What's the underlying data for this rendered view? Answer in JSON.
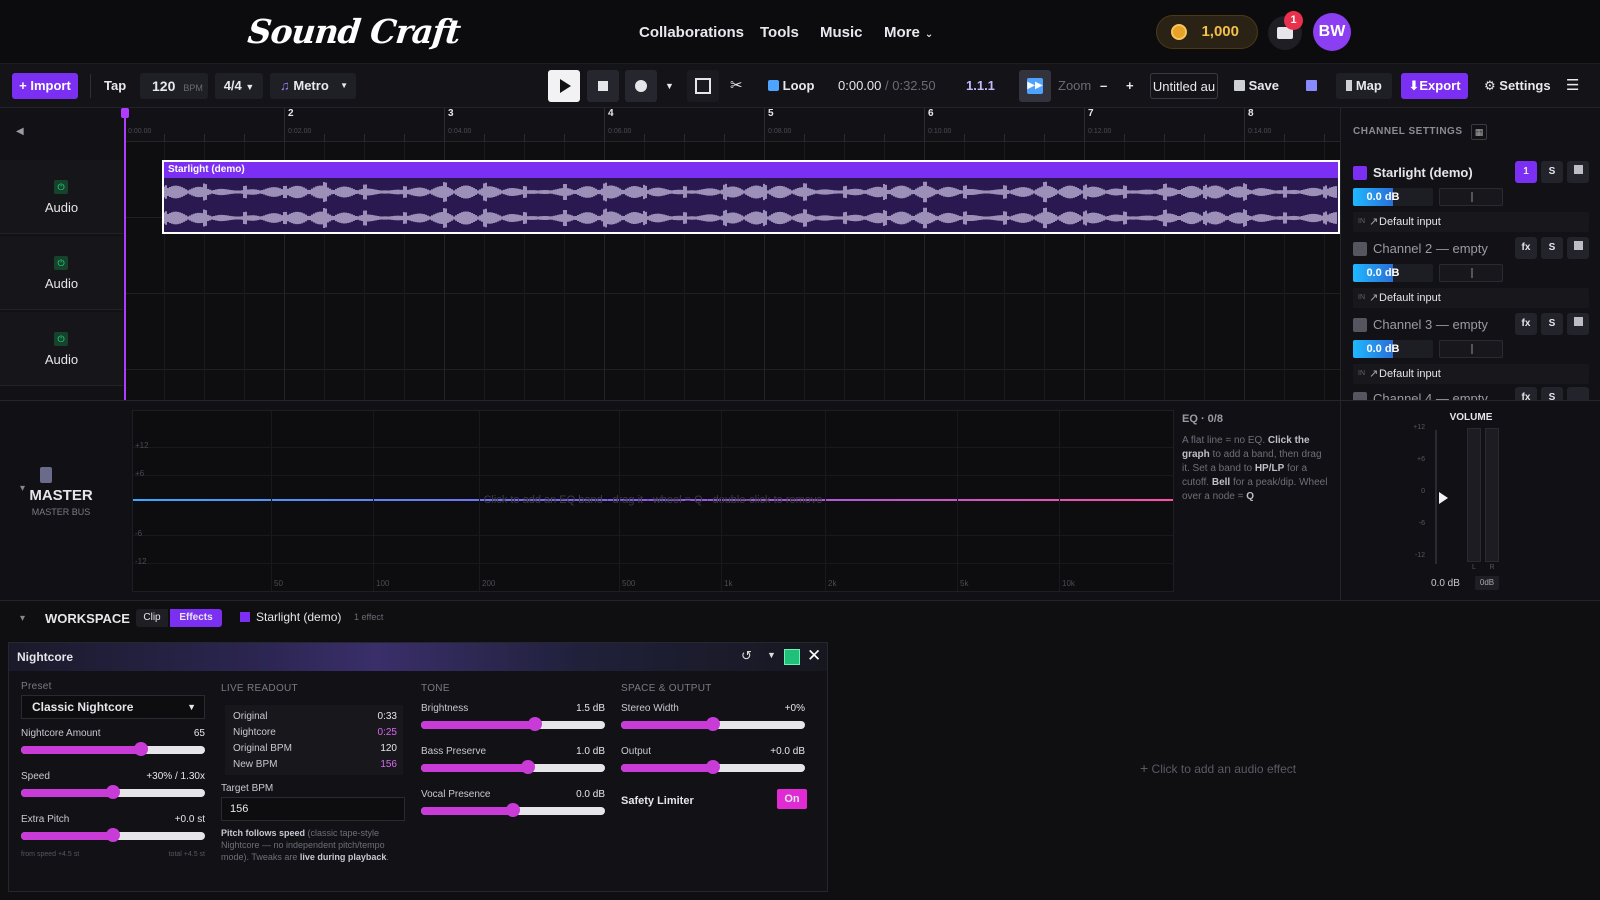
{
  "nav": {
    "logo": "Sound Craft",
    "links": [
      "Collaborations",
      "Tools",
      "Music",
      "More"
    ],
    "coins": "1,000",
    "inbox_count": "1",
    "avatar": "BW"
  },
  "toolbar": {
    "import": "+ Import",
    "tap": "Tap",
    "bpm": "120",
    "bpm_unit": "BPM",
    "time_sig": "4/4",
    "metro": "Metro",
    "loop": "Loop",
    "time_current": "0:00.00",
    "time_total": "/ 0:32.50",
    "position": "1.1.1",
    "zoom": "Zoom",
    "zoom_minus": "–",
    "zoom_plus": "+",
    "project_name": "Untitled au",
    "save": "Save",
    "map": "Map",
    "export": "Export",
    "settings": "Settings"
  },
  "ruler": {
    "bars": [
      "2",
      "3",
      "4",
      "5",
      "6",
      "7",
      "8"
    ],
    "times": [
      "0:00.00",
      "0:02.00",
      "0:04.00",
      "0:06.00",
      "0:08.00",
      "0:10.00",
      "0:12.00",
      "0:14.00"
    ]
  },
  "tracks": [
    {
      "label": "Audio"
    },
    {
      "label": "Audio"
    },
    {
      "label": "Audio"
    }
  ],
  "clip": {
    "name": "Starlight (demo)"
  },
  "channel_settings": {
    "title": "CHANNEL SETTINGS",
    "channels": [
      {
        "name": "Starlight (demo)",
        "color": "#7b2ff2",
        "btn1": "1",
        "solo": "S",
        "volume": "0.0 dB",
        "input_tag": "IN",
        "input": "Default input"
      },
      {
        "name": "Channel 2 — empty",
        "color": "#55555f",
        "btn1": "fx",
        "solo": "S",
        "volume": "0.0 dB",
        "input_tag": "IN",
        "input": "Default input"
      },
      {
        "name": "Channel 3 — empty",
        "color": "#55555f",
        "btn1": "fx",
        "solo": "S",
        "volume": "0.0 dB",
        "input_tag": "IN",
        "input": "Default input"
      },
      {
        "name": "Channel 4 — empty",
        "color": "#55555f",
        "btn1": "fx",
        "solo": "S"
      }
    ]
  },
  "master": {
    "title": "MASTER",
    "subtitle": "MASTER BUS",
    "eq_hint": "Click to add an EQ band · drag it · wheel = Q · double-click to remove",
    "eq_y_ticks": [
      "+12",
      "+6",
      "-6",
      "-12"
    ],
    "eq_x_ticks": [
      "50",
      "100",
      "200",
      "500",
      "1k",
      "2k",
      "5k",
      "10k"
    ],
    "eq_title": "EQ · 0/8",
    "eq_help_1": "A flat line = no EQ. ",
    "eq_help_b1": "Click the graph",
    "eq_help_2": " to add a band, then drag it. Set a band to ",
    "eq_help_b2": "HP/LP",
    "eq_help_3": " for a cutoff. ",
    "eq_help_b3": "Bell",
    "eq_help_4": " for a peak/dip. Wheel over a node = ",
    "eq_help_b4": "Q",
    "volume_title": "VOLUME",
    "volume_ticks": [
      "+12",
      "+6",
      "0",
      "-6",
      "-12"
    ],
    "volume_value": "0.0 dB",
    "volume_btn": "0dB",
    "meter_labels": [
      "L",
      "R"
    ]
  },
  "workspace": {
    "title": "WORKSPACE",
    "tab_clip": "Clip",
    "tab_effects": "Effects",
    "clip_name": "Starlight (demo)",
    "effect_count": "1 effect",
    "add_effect": "Click to add an audio effect"
  },
  "nightcore": {
    "title": "Nightcore",
    "preset_label": "Preset",
    "preset_value": "Classic Nightcore",
    "amount_label": "Nightcore Amount",
    "amount_value": "65",
    "amount_level": 0.65,
    "speed_label": "Speed",
    "speed_value": "+30% / 1.30x",
    "speed_level": 0.5,
    "pitch_label": "Extra Pitch",
    "pitch_value": "+0.0 st",
    "pitch_level": 0.5,
    "from_speed": "from speed +4.5 st",
    "total": "total +4.5 st",
    "readout_title": "LIVE READOUT",
    "readout": [
      {
        "k": "Original",
        "v": "0:33",
        "hl": false
      },
      {
        "k": "Nightcore",
        "v": "0:25",
        "hl": true
      },
      {
        "k": "Original BPM",
        "v": "120",
        "hl": false
      },
      {
        "k": "New BPM",
        "v": "156",
        "hl": true
      }
    ],
    "target_bpm_label": "Target BPM",
    "target_bpm_value": "156",
    "note_b1": "Pitch follows speed",
    "note_1": " (classic tape-style Nightcore — no independent pitch/tempo mode). Tweaks are ",
    "note_b2": "live during playback",
    "note_2": ".",
    "tone_title": "TONE",
    "brightness_label": "Brightness",
    "brightness_value": "1.5 dB",
    "brightness_level": 0.62,
    "bass_label": "Bass Preserve",
    "bass_value": "1.0 dB",
    "bass_level": 0.58,
    "vocal_label": "Vocal Presence",
    "vocal_value": "0.0 dB",
    "vocal_level": 0.5,
    "space_title": "SPACE & OUTPUT",
    "width_label": "Stereo Width",
    "width_value": "+0%",
    "width_level": 0.5,
    "output_label": "Output",
    "output_value": "+0.0 dB",
    "output_level": 0.5,
    "limiter_label": "Safety Limiter",
    "limiter_value": "On"
  },
  "colors": {
    "accent": "#7b2ff2",
    "slider": "#c83bd6",
    "meter": "#1fb8ff"
  }
}
